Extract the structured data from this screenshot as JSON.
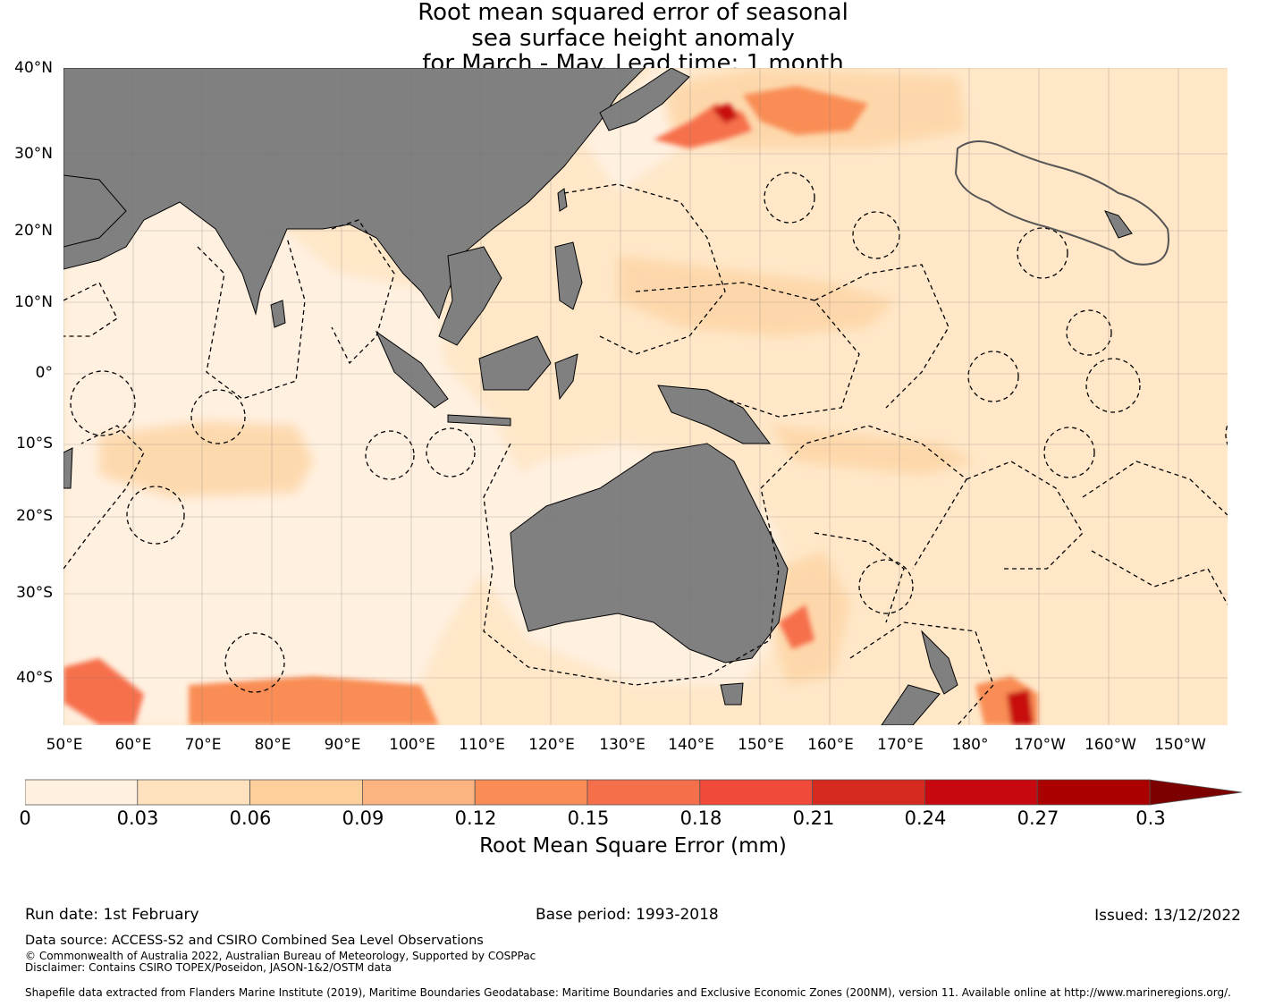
{
  "title": {
    "line1": "Root mean squared error of seasonal",
    "line2": "sea surface height anomaly",
    "line3": "for March - May. Lead time: 1 month"
  },
  "map": {
    "lat_labels": [
      "40°N",
      "30°N",
      "20°N",
      "10°N",
      "0°",
      "10°S",
      "20°S",
      "30°S",
      "40°S"
    ],
    "lon_labels": [
      "50°E",
      "60°E",
      "70°E",
      "80°E",
      "90°E",
      "100°E",
      "110°E",
      "120°E",
      "130°E",
      "140°E",
      "150°E",
      "160°E",
      "170°E",
      "180°",
      "170°W",
      "160°W",
      "150°W"
    ],
    "colors": {
      "ocean_low": "#fff0e0",
      "ocean_mid": "#ffe2bd",
      "land": "#808080",
      "hot": "#e8401f"
    }
  },
  "colorbar": {
    "ticks": [
      "0",
      "0.03",
      "0.06",
      "0.09",
      "0.12",
      "0.15",
      "0.18",
      "0.21",
      "0.24",
      "0.27",
      "0.3"
    ],
    "colors": [
      "#fff0e0",
      "#ffe2bd",
      "#fdcf9b",
      "#fbb47f",
      "#f98d55",
      "#f66f4b",
      "#f04a3a",
      "#d62a1e",
      "#c7090f",
      "#aa0000",
      "#7d0000"
    ],
    "label": "Root Mean Square Error (mm)"
  },
  "footer": {
    "run_date": "Run date: 1st February",
    "base_period": "Base period: 1993-2018",
    "issued": "Issued: 13/12/2022",
    "data_source": "Data source: ACCESS-S2 and CSIRO Combined Sea Level Observations",
    "copyright": "© Commonwealth of Australia 2022, Australian Bureau of Meteorology, Supported by COSPPac",
    "disclaimer": "Disclaimer: Contains CSIRO TOPEX/Poseidon, JASON-1&2/OSTM data",
    "shapefile": "Shapefile data extracted from Flanders Marine Institute (2019), Maritime Boundaries Geodatabase: Maritime Boundaries and Exclusive Economic Zones (200NM), version 11. Available online at http://www.marineregions.org/."
  }
}
